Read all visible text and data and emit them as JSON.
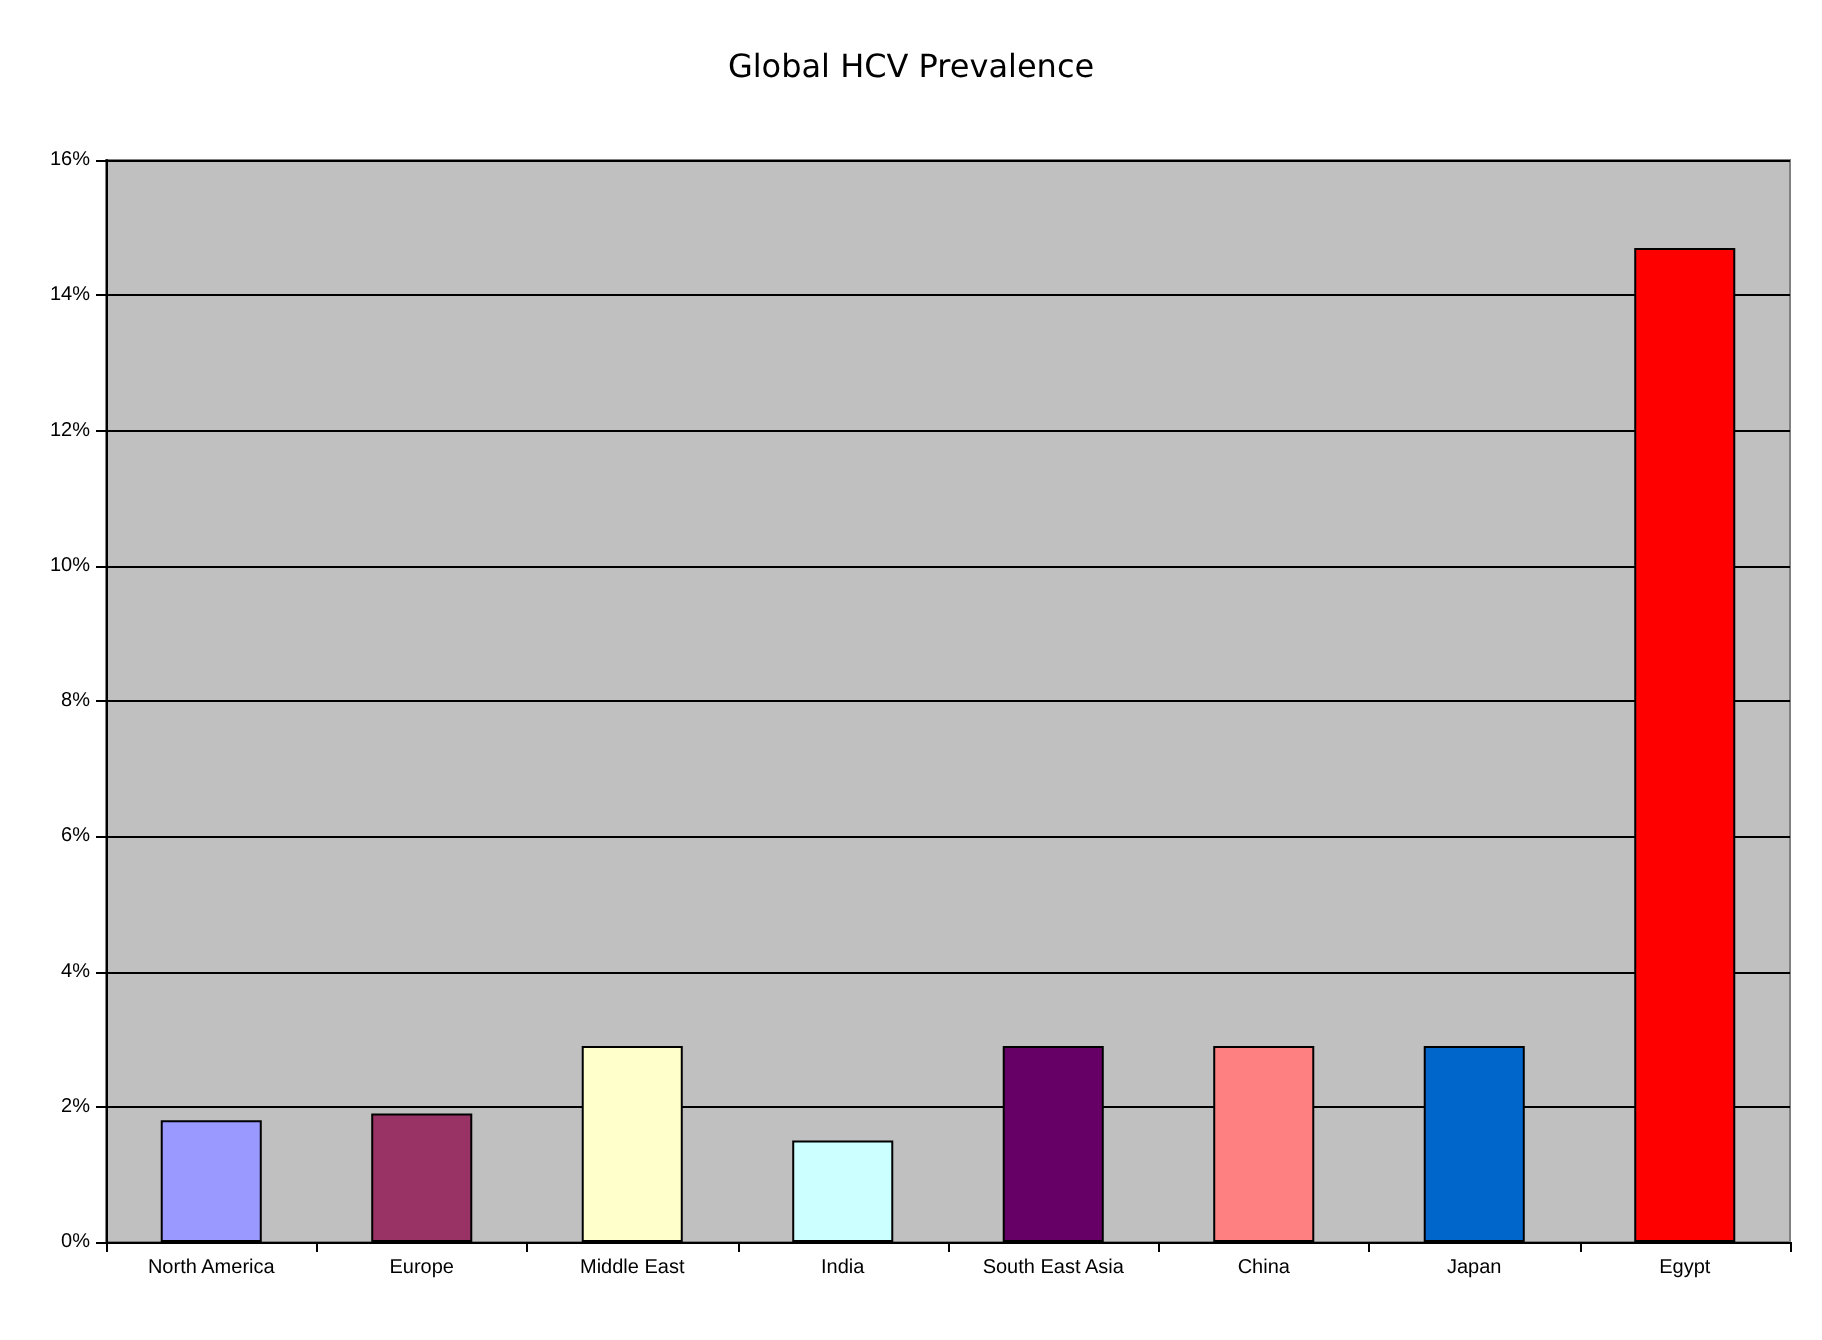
{
  "chart_data": {
    "type": "bar",
    "title": "Global HCV Prevalence",
    "categories": [
      "North America",
      "Europe",
      "Middle East",
      "India",
      "South East Asia",
      "China",
      "Japan",
      "Egypt"
    ],
    "values": [
      1.8,
      1.9,
      2.9,
      1.5,
      2.9,
      2.9,
      2.9,
      14.7
    ],
    "colors": [
      "#9999ff",
      "#993366",
      "#ffffcc",
      "#ccffff",
      "#660066",
      "#ff8080",
      "#0066cc",
      "#ff0000"
    ],
    "ylim": [
      0,
      16
    ],
    "yticks": [
      {
        "value": 0,
        "label": "0%"
      },
      {
        "value": 2,
        "label": "2%"
      },
      {
        "value": 4,
        "label": "4%"
      },
      {
        "value": 6,
        "label": "6%"
      },
      {
        "value": 8,
        "label": "8%"
      },
      {
        "value": 10,
        "label": "10%"
      },
      {
        "value": 12,
        "label": "12%"
      },
      {
        "value": 14,
        "label": "14%"
      },
      {
        "value": 16,
        "label": "16%"
      }
    ],
    "grid": "y"
  }
}
